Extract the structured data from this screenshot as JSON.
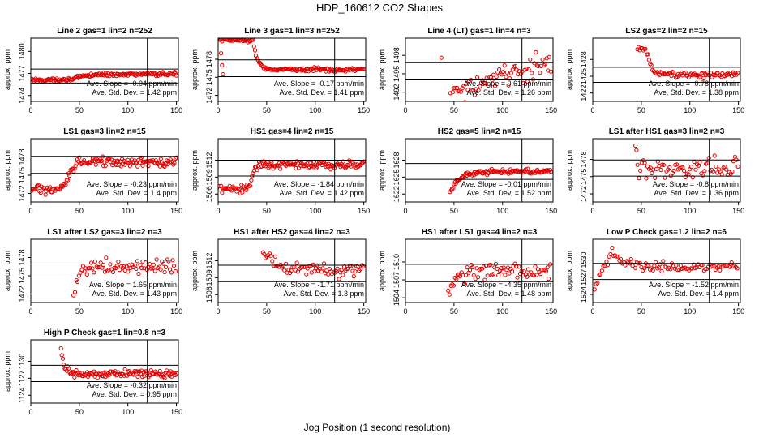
{
  "figure": {
    "title": "HDP_160612  CO2 Shapes",
    "xlabel": "Jog Position (1 second resolution)",
    "colors": {
      "points": "#e00000",
      "lines": "#000000",
      "text": "#000000"
    }
  },
  "chart_data": [
    {
      "type": "scatter",
      "title": "Line 2 gas=1 lin=2 n=252",
      "ylabel": "approx. ppm",
      "xlim": [
        0,
        152
      ],
      "ylim": [
        1473.2,
        1481.8
      ],
      "xticks": [
        0,
        50,
        100,
        150
      ],
      "yticks": [
        1474,
        1477,
        1480
      ],
      "vline": 120,
      "hlines": [
        1477.6,
        1475.7
      ],
      "slope_text": "Ave. Slope =  -0.04  ppm/min",
      "stddev_text": "Ave. Std. Dev. =  1.42  ppm",
      "profile": {
        "x0": 1,
        "x1": 150,
        "step": 1,
        "kind": "sigmoid",
        "y0": 1476.1,
        "y1": 1476.9,
        "xm": 52,
        "w": 7,
        "noise": 0.12
      }
    },
    {
      "type": "scatter",
      "title": "Line 3 gas=1 lin=3 n=252",
      "ylabel": "approx. ppm",
      "xlim": [
        0,
        152
      ],
      "ylim": [
        1471.0,
        1481.5
      ],
      "xticks": [
        0,
        50,
        100,
        150
      ],
      "yticks": [
        1472,
        1475,
        1478
      ],
      "vline": 120,
      "hlines": [
        1477.9,
        1475.1
      ],
      "slope_text": "Ave. Slope =  -0.17  ppm/min",
      "stddev_text": "Ave. Std. Dev. =  1.41  ppm",
      "profile": {
        "x0": 1,
        "x1": 150,
        "step": 1,
        "kind": "decay",
        "y0": 1481.2,
        "y1": 1476.3,
        "xm": 36,
        "w": 4,
        "noise": 0.15
      },
      "extra": [
        {
          "x": 3,
          "y": 1479.0
        },
        {
          "x": 4,
          "y": 1477.0
        },
        {
          "x": 5,
          "y": 1475.5
        }
      ]
    },
    {
      "type": "scatter",
      "title": "Line 4 (LT) gas=1 lin=4 n=3",
      "ylabel": "approx. ppm",
      "xlim": [
        0,
        152
      ],
      "ylim": [
        1490.5,
        1500.8
      ],
      "xticks": [
        0,
        50,
        100,
        150
      ],
      "yticks": [
        1492,
        1495,
        1498
      ],
      "vline": 120,
      "hlines": [
        1496.8,
        1494.0
      ],
      "slope_text": "Ave. Slope =  0.61  ppm/min",
      "stddev_text": "Ave. Std. Dev. =  1.26  ppm",
      "profile": {
        "x0": 46,
        "x1": 150,
        "step": 1.4,
        "kind": "linear",
        "y0": 1491.6,
        "y1": 1497.0,
        "noise": 0.9
      },
      "extra": [
        {
          "x": 37,
          "y": 1497.6
        }
      ]
    },
    {
      "type": "scatter",
      "title": "LS2 gas=2 lin=2 n=15",
      "ylabel": "approx. ppm",
      "xlim": [
        0,
        152
      ],
      "ylim": [
        1420.5,
        1431.8
      ],
      "xticks": [
        0,
        50,
        100,
        150
      ],
      "yticks": [
        1422,
        1425,
        1428
      ],
      "vline": 120,
      "hlines": [
        1426.6,
        1423.9
      ],
      "slope_text": "Ave. Slope =  -0.78  ppm/min",
      "stddev_text": "Ave. Std. Dev. =  1.38  ppm",
      "profile": {
        "x0": 46,
        "x1": 150,
        "step": 1.2,
        "kind": "decay",
        "y0": 1429.6,
        "y1": 1425.3,
        "xm": 56,
        "w": 4,
        "noise": 0.28
      }
    },
    {
      "type": "scatter",
      "title": "LS1 gas=3 lin=2 n=15",
      "ylabel": "approx. ppm",
      "xlim": [
        0,
        152
      ],
      "ylim": [
        1470.6,
        1481.0
      ],
      "xticks": [
        0,
        50,
        100,
        150
      ],
      "yticks": [
        1472,
        1475,
        1478
      ],
      "vline": 120,
      "hlines": [
        1478.1,
        1475.3
      ],
      "slope_text": "Ave. Slope =  -0.23  ppm/min",
      "stddev_text": "Ave. Std. Dev. =  1.4  ppm",
      "profile": {
        "x0": 1,
        "x1": 150,
        "step": 1,
        "kind": "sigmoid",
        "y0": 1472.7,
        "y1": 1477.2,
        "xm": 40,
        "w": 3,
        "noise": 0.35
      }
    },
    {
      "type": "scatter",
      "title": "HS1 gas=4 lin=2 n=15",
      "ylabel": "approx. ppm",
      "xlim": [
        0,
        152
      ],
      "ylim": [
        1504.6,
        1515.8
      ],
      "xticks": [
        0,
        50,
        100,
        150
      ],
      "yticks": [
        1506,
        1509,
        1512
      ],
      "vline": 120,
      "hlines": [
        1512.0,
        1509.2
      ],
      "slope_text": "Ave. Slope =  -1.84  ppm/min",
      "stddev_text": "Ave. Std. Dev. =  1.42  ppm",
      "profile": {
        "x0": 1,
        "x1": 150,
        "step": 1,
        "kind": "sigmoid",
        "y0": 1506.8,
        "y1": 1511.1,
        "xm": 35,
        "w": 2,
        "noise": 0.35
      }
    },
    {
      "type": "scatter",
      "title": "HS2 gas=5 lin=2 n=15",
      "ylabel": "approx. ppm",
      "xlim": [
        0,
        152
      ],
      "ylim": [
        1620.6,
        1631.8
      ],
      "xticks": [
        0,
        50,
        100,
        150
      ],
      "yticks": [
        1622,
        1625,
        1628
      ],
      "vline": 120,
      "hlines": [
        1627.4,
        1624.6
      ],
      "slope_text": "Ave. Slope =  -0.01  ppm/min",
      "stddev_text": "Ave. Std. Dev. =  1.52  ppm",
      "profile": {
        "x0": 46,
        "x1": 150,
        "step": 1,
        "kind": "rise",
        "y0": 1622.3,
        "y1": 1626.0,
        "xm": 46,
        "w": 10,
        "noise": 0.2
      }
    },
    {
      "type": "scatter",
      "title": "LS1 after HS1 gas=3 lin=2 n=3",
      "ylabel": "approx. ppm",
      "xlim": [
        0,
        152
      ],
      "ylim": [
        1470.6,
        1481.6
      ],
      "xticks": [
        0,
        50,
        100,
        150
      ],
      "yticks": [
        1472,
        1475,
        1478
      ],
      "vline": 120,
      "hlines": [
        1477.9,
        1475.1
      ],
      "slope_text": "Ave. Slope =  -0.8  ppm/min",
      "stddev_text": "Ave. Std. Dev. =  1.36  ppm",
      "profile": {
        "x0": 46,
        "x1": 150,
        "step": 1.5,
        "kind": "flat",
        "y0": 1476.4,
        "noise": 0.8
      },
      "extra": [
        {
          "x": 44,
          "y": 1480.4
        },
        {
          "x": 45,
          "y": 1479.6
        }
      ]
    },
    {
      "type": "scatter",
      "title": "LS1 after LS2 gas=3 lin=2 n=3",
      "ylabel": "approx. ppm",
      "xlim": [
        0,
        152
      ],
      "ylim": [
        1470.6,
        1481.0
      ],
      "xticks": [
        0,
        50,
        100,
        150
      ],
      "yticks": [
        1472,
        1475,
        1478
      ],
      "vline": 120,
      "hlines": [
        1477.6,
        1474.8
      ],
      "slope_text": "Ave. Slope =  1.65  ppm/min",
      "stddev_text": "Ave. Std. Dev. =  1.43  ppm",
      "profile": {
        "x0": 44,
        "x1": 150,
        "step": 1.4,
        "kind": "rise",
        "y0": 1471.0,
        "y1": 1476.6,
        "xm": 44,
        "w": 5,
        "noise": 0.6
      }
    },
    {
      "type": "scatter",
      "title": "HS1 after HS2 gas=4 lin=2 n=3",
      "ylabel": "approx. ppm",
      "xlim": [
        0,
        152
      ],
      "ylim": [
        1504.6,
        1515.8
      ],
      "xticks": [
        0,
        50,
        100,
        150
      ],
      "yticks": [
        1506,
        1509,
        1512
      ],
      "vline": 120,
      "hlines": [
        1511.2,
        1508.3
      ],
      "slope_text": "Ave. Slope =  -1.71  ppm/min",
      "stddev_text": "Ave. Std. Dev. =  1.3  ppm",
      "profile": {
        "x0": 46,
        "x1": 150,
        "step": 1.4,
        "kind": "decay",
        "y0": 1513.6,
        "y1": 1510.4,
        "xm": 46,
        "w": 12,
        "noise": 0.6
      }
    },
    {
      "type": "scatter",
      "title": "HS1 after LS1 gas=4 lin=2 n=3",
      "ylabel": "approx. ppm",
      "xlim": [
        0,
        152
      ],
      "ylim": [
        1503.2,
        1513.8
      ],
      "xticks": [
        0,
        50,
        100,
        150
      ],
      "yticks": [
        1504,
        1507,
        1510
      ],
      "vline": 120,
      "hlines": [
        1509.6,
        1506.7
      ],
      "slope_text": "Ave. Slope =  -4.35  ppm/min",
      "stddev_text": "Ave. Std. Dev. =  1.48  ppm",
      "profile": {
        "x0": 44,
        "x1": 150,
        "step": 1.4,
        "kind": "rise",
        "y0": 1503.8,
        "y1": 1508.4,
        "xm": 44,
        "w": 7,
        "noise": 0.6
      }
    },
    {
      "type": "scatter",
      "title": "Low P Check gas=1.2 lin=2 n=6",
      "ylabel": "approx. ppm",
      "xlim": [
        0,
        152
      ],
      "ylim": [
        1522.6,
        1533.6
      ],
      "xticks": [
        0,
        50,
        100,
        150
      ],
      "yticks": [
        1524,
        1527,
        1530
      ],
      "vline": 120,
      "hlines": [
        1529.4,
        1526.6
      ],
      "slope_text": "Ave. Slope =  -1.52  ppm/min",
      "stddev_text": "Ave. Std. Dev. =  1.4  ppm",
      "profile": {
        "x0": 2,
        "x1": 150,
        "step": 1.5,
        "kind": "bump",
        "y0": 1525.4,
        "y1": 1528.7,
        "xm": 20,
        "w": 12,
        "peak": 1531.6,
        "noise": 0.45
      }
    },
    {
      "type": "scatter",
      "title": "High P Check gas=1 lin=0.8 n=3",
      "ylabel": "approx. ppm",
      "xlim": [
        0,
        152
      ],
      "ylim": [
        1122.6,
        1133.8
      ],
      "xticks": [
        0,
        50,
        100,
        150
      ],
      "yticks": [
        1124,
        1127,
        1130
      ],
      "vline": 120,
      "hlines": [
        1129.3,
        1126.4
      ],
      "slope_text": "Ave. Slope =  -0.32  ppm/min",
      "stddev_text": "Ave. Std. Dev. =  0.95  ppm",
      "profile": {
        "x0": 31,
        "x1": 150,
        "step": 1,
        "kind": "decay",
        "y0": 1132.5,
        "y1": 1127.8,
        "xm": 31,
        "w": 3,
        "noise": 0.3
      }
    }
  ]
}
